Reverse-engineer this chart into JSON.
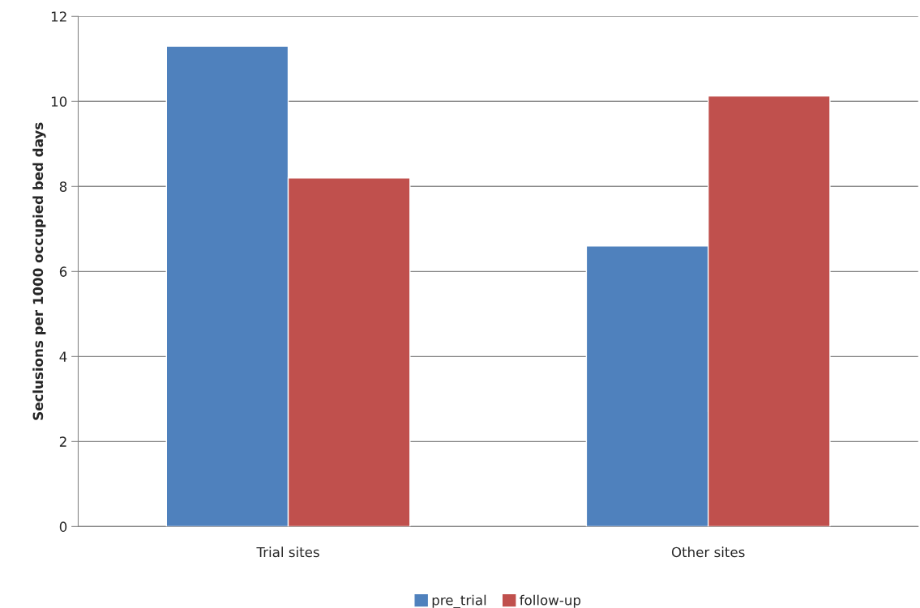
{
  "chart_data": {
    "type": "bar",
    "ylabel": "Seclusions per 1000 occupied bed days",
    "categories": [
      "Trial sites",
      "Other sites"
    ],
    "series": [
      {
        "name": "pre_trial",
        "color": "#4f81bd",
        "values": [
          11.3,
          6.6
        ]
      },
      {
        "name": "follow-up",
        "color": "#c0504d",
        "values": [
          8.2,
          10.13
        ]
      }
    ],
    "ylim": [
      0,
      12
    ],
    "yticks": [
      0,
      2,
      4,
      6,
      8,
      10,
      12
    ],
    "grid": "y",
    "legend": "bottom"
  }
}
